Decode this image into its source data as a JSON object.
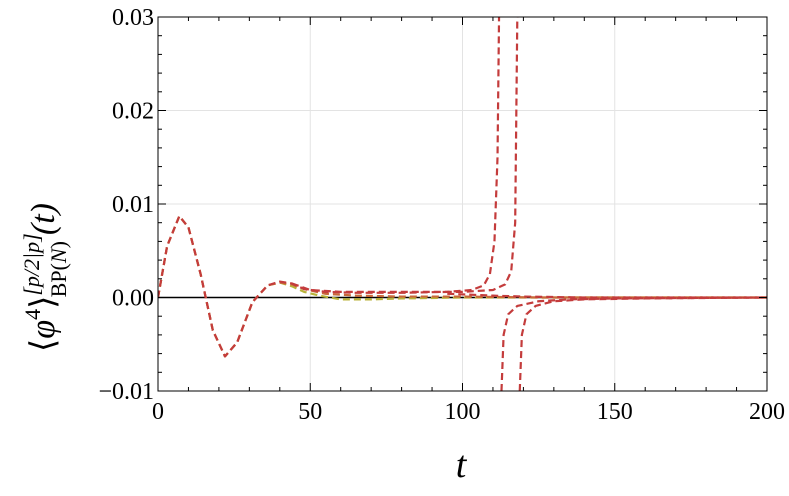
{
  "chart_data": {
    "type": "line",
    "title": "",
    "xlabel": "t",
    "ylabel": {
      "base": "⟨",
      "phi": "φ",
      "bar": "̄",
      "power": "4",
      "close": "⟩",
      "superscript": "[p/2|p]",
      "subscript_bp": "BP(",
      "subscript_n": "N",
      "subscript_close": ")",
      "arg": "(t)"
    },
    "xlim": [
      0,
      200
    ],
    "ylim": [
      -0.01,
      0.03
    ],
    "x_ticks": [
      0,
      50,
      100,
      150,
      200
    ],
    "x_tick_labels": [
      "0",
      "50",
      "100",
      "150",
      "200"
    ],
    "y_ticks": [
      -0.01,
      0.0,
      0.01,
      0.02,
      0.03
    ],
    "y_tick_labels": [
      "−0.01",
      "0.00",
      "0.01",
      "0.02",
      "0.03"
    ],
    "grid": true,
    "zero_line": true,
    "series": [
      {
        "color": "#b8b23a",
        "style": "dashed",
        "points": [
          [
            0,
            0
          ],
          [
            3,
            0.0055
          ],
          [
            7,
            0.0087
          ],
          [
            10,
            0.0075
          ],
          [
            14,
            0.0025
          ],
          [
            18,
            -0.0035
          ],
          [
            22,
            -0.0063
          ],
          [
            26,
            -0.0048
          ],
          [
            31,
            -0.0005
          ],
          [
            36,
            0.0013
          ],
          [
            40,
            0.0016
          ],
          [
            44,
            0.0012
          ],
          [
            48,
            0.0006
          ],
          [
            53,
            0.0002
          ],
          [
            60,
            -0.0002
          ],
          [
            70,
            -0.0002
          ],
          [
            80,
            -0.0001
          ],
          [
            100,
            0.0
          ],
          [
            130,
            0.0
          ],
          [
            200,
            0.0
          ]
        ]
      },
      {
        "color": "#c8693a",
        "style": "dashed",
        "points": [
          [
            0,
            0
          ],
          [
            3,
            0.0055
          ],
          [
            7,
            0.0087
          ],
          [
            10,
            0.0075
          ],
          [
            14,
            0.0025
          ],
          [
            18,
            -0.0035
          ],
          [
            22,
            -0.0063
          ],
          [
            26,
            -0.0048
          ],
          [
            31,
            -0.0005
          ],
          [
            36,
            0.0013
          ],
          [
            40,
            0.0016
          ],
          [
            44,
            0.0014
          ],
          [
            48,
            0.0009
          ],
          [
            55,
            0.0004
          ],
          [
            65,
            0.0002
          ],
          [
            80,
            0.0001
          ],
          [
            100,
            0.0001
          ],
          [
            125,
            0.0
          ],
          [
            200,
            0.0
          ]
        ]
      },
      {
        "color": "#c43c3c",
        "style": "dashed",
        "points": [
          [
            0,
            0
          ],
          [
            3,
            0.0055
          ],
          [
            7,
            0.0087
          ],
          [
            10,
            0.0075
          ],
          [
            14,
            0.0025
          ],
          [
            18,
            -0.0035
          ],
          [
            22,
            -0.0063
          ],
          [
            26,
            -0.0048
          ],
          [
            31,
            -0.0005
          ],
          [
            36,
            0.0013
          ],
          [
            40,
            0.0017
          ],
          [
            44,
            0.0015
          ],
          [
            48,
            0.0009
          ],
          [
            55,
            0.0006
          ],
          [
            65,
            0.0005
          ],
          [
            80,
            0.0005
          ],
          [
            95,
            0.0006
          ],
          [
            103,
            0.0008
          ],
          [
            107,
            0.0013
          ],
          [
            109,
            0.0025
          ],
          [
            110.5,
            0.006
          ],
          [
            111.5,
            0.015
          ],
          [
            112,
            0.03
          ]
        ]
      },
      {
        "color": "#c43c3c",
        "style": "dashed",
        "points": [
          [
            44,
            0.0015
          ],
          [
            50,
            0.0008
          ],
          [
            60,
            0.0006
          ],
          [
            80,
            0.0006
          ],
          [
            100,
            0.0006
          ],
          [
            110,
            0.0008
          ],
          [
            114,
            0.0014
          ],
          [
            116,
            0.0028
          ],
          [
            117.3,
            0.008
          ],
          [
            118,
            0.03
          ]
        ]
      },
      {
        "color": "#c43c3c",
        "style": "dashed",
        "points": [
          [
            112.8,
            -0.01
          ],
          [
            113.5,
            -0.004
          ],
          [
            115,
            -0.0018
          ],
          [
            118,
            -0.0009
          ],
          [
            125,
            -0.0004
          ],
          [
            135,
            -0.0002
          ],
          [
            150,
            -0.0001
          ],
          [
            200,
            0.0
          ]
        ]
      },
      {
        "color": "#c43c3c",
        "style": "dashed",
        "points": [
          [
            118.8,
            -0.01
          ],
          [
            119.5,
            -0.004
          ],
          [
            121,
            -0.0018
          ],
          [
            124,
            -0.0009
          ],
          [
            130,
            -0.0004
          ],
          [
            140,
            -0.0002
          ],
          [
            160,
            -0.0001
          ],
          [
            200,
            0.0
          ]
        ]
      },
      {
        "color": "#c43c3c",
        "style": "dashed",
        "points": [
          [
            95,
            0.0004
          ],
          [
            110,
            0.0002
          ],
          [
            120,
            0.0001
          ],
          [
            140,
            0.0
          ],
          [
            200,
            0.0
          ]
        ]
      }
    ]
  }
}
